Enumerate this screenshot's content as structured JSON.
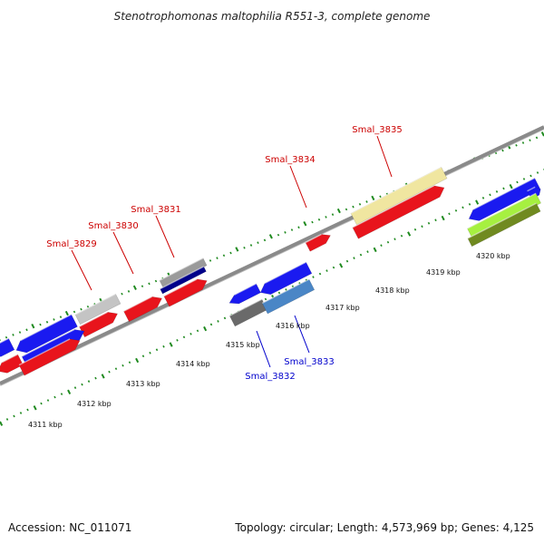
{
  "title": "Stenotrophomonas maltophilia R551-3, complete genome",
  "footer": {
    "accession": "Accession: NC_011071",
    "summary": "Topology: circular; Length: 4,573,969 bp; Genes: 4,125"
  },
  "colors": {
    "background": "#ffffff",
    "backbone": "#8a8a8a",
    "tick_green": "#1f8a1f",
    "label_forward": "#cc0000",
    "label_reverse": "#0000cc",
    "leader_forward": "#cc0000",
    "leader_reverse": "#0000cc"
  },
  "scale": {
    "unit": "kbp",
    "ticks": [
      {
        "label": "4311 kbp"
      },
      {
        "label": "4312 kbp"
      },
      {
        "label": "4313 kbp"
      },
      {
        "label": "4314 kbp"
      },
      {
        "label": "4315 kbp"
      },
      {
        "label": "4316 kbp"
      },
      {
        "label": "4317 kbp"
      },
      {
        "label": "4318 kbp"
      },
      {
        "label": "4319 kbp"
      },
      {
        "label": "4320 kbp"
      }
    ]
  },
  "gene_labels": [
    {
      "name": "Smal_3829",
      "strand": "forward"
    },
    {
      "name": "Smal_3830",
      "strand": "forward"
    },
    {
      "name": "Smal_3831",
      "strand": "forward"
    },
    {
      "name": "Smal_3834",
      "strand": "forward"
    },
    {
      "name": "Smal_3835",
      "strand": "forward"
    },
    {
      "name": "Smal_3832",
      "strand": "reverse"
    },
    {
      "name": "Smal_3833",
      "strand": "reverse"
    }
  ],
  "features": [
    {
      "color": "#e8141c",
      "lane": "cds-outer"
    },
    {
      "color": "#e8141c",
      "lane": "cds-outer"
    },
    {
      "color": "#e8141c",
      "lane": "cds-outer"
    },
    {
      "color": "#e8141c",
      "lane": "cds-outer"
    },
    {
      "color": "#e8141c",
      "lane": "cds-outer"
    },
    {
      "color": "#e8141c",
      "lane": "cds-outer"
    },
    {
      "color": "#1a1af0",
      "lane": "blast-outer"
    },
    {
      "color": "#1a1af0",
      "lane": "blast-outer"
    },
    {
      "color": "#c4c4c4",
      "lane": "blast-outer"
    },
    {
      "color": "#9a9a9a",
      "lane": "blast-outer"
    },
    {
      "color": "#f0e6a0",
      "lane": "blast-outer"
    },
    {
      "color": "#1a1af0",
      "lane": "blast-outer"
    },
    {
      "color": "#00008a",
      "lane": "blast-mid"
    },
    {
      "color": "#1a1af0",
      "lane": "inner-a"
    },
    {
      "color": "#1a1af0",
      "lane": "inner-b"
    },
    {
      "color": "#6a6a6a",
      "lane": "inner-c"
    },
    {
      "color": "#4a86c6",
      "lane": "inner-c"
    },
    {
      "color": "#1a1af0",
      "lane": "inner-a"
    },
    {
      "color": "#a6f040",
      "lane": "inner-b"
    },
    {
      "color": "#708a20",
      "lane": "inner-c"
    },
    {
      "color": "#1a1af0",
      "lane": "cds-inner-left"
    },
    {
      "color": "#e8141c",
      "lane": "cds-inner-left"
    }
  ]
}
